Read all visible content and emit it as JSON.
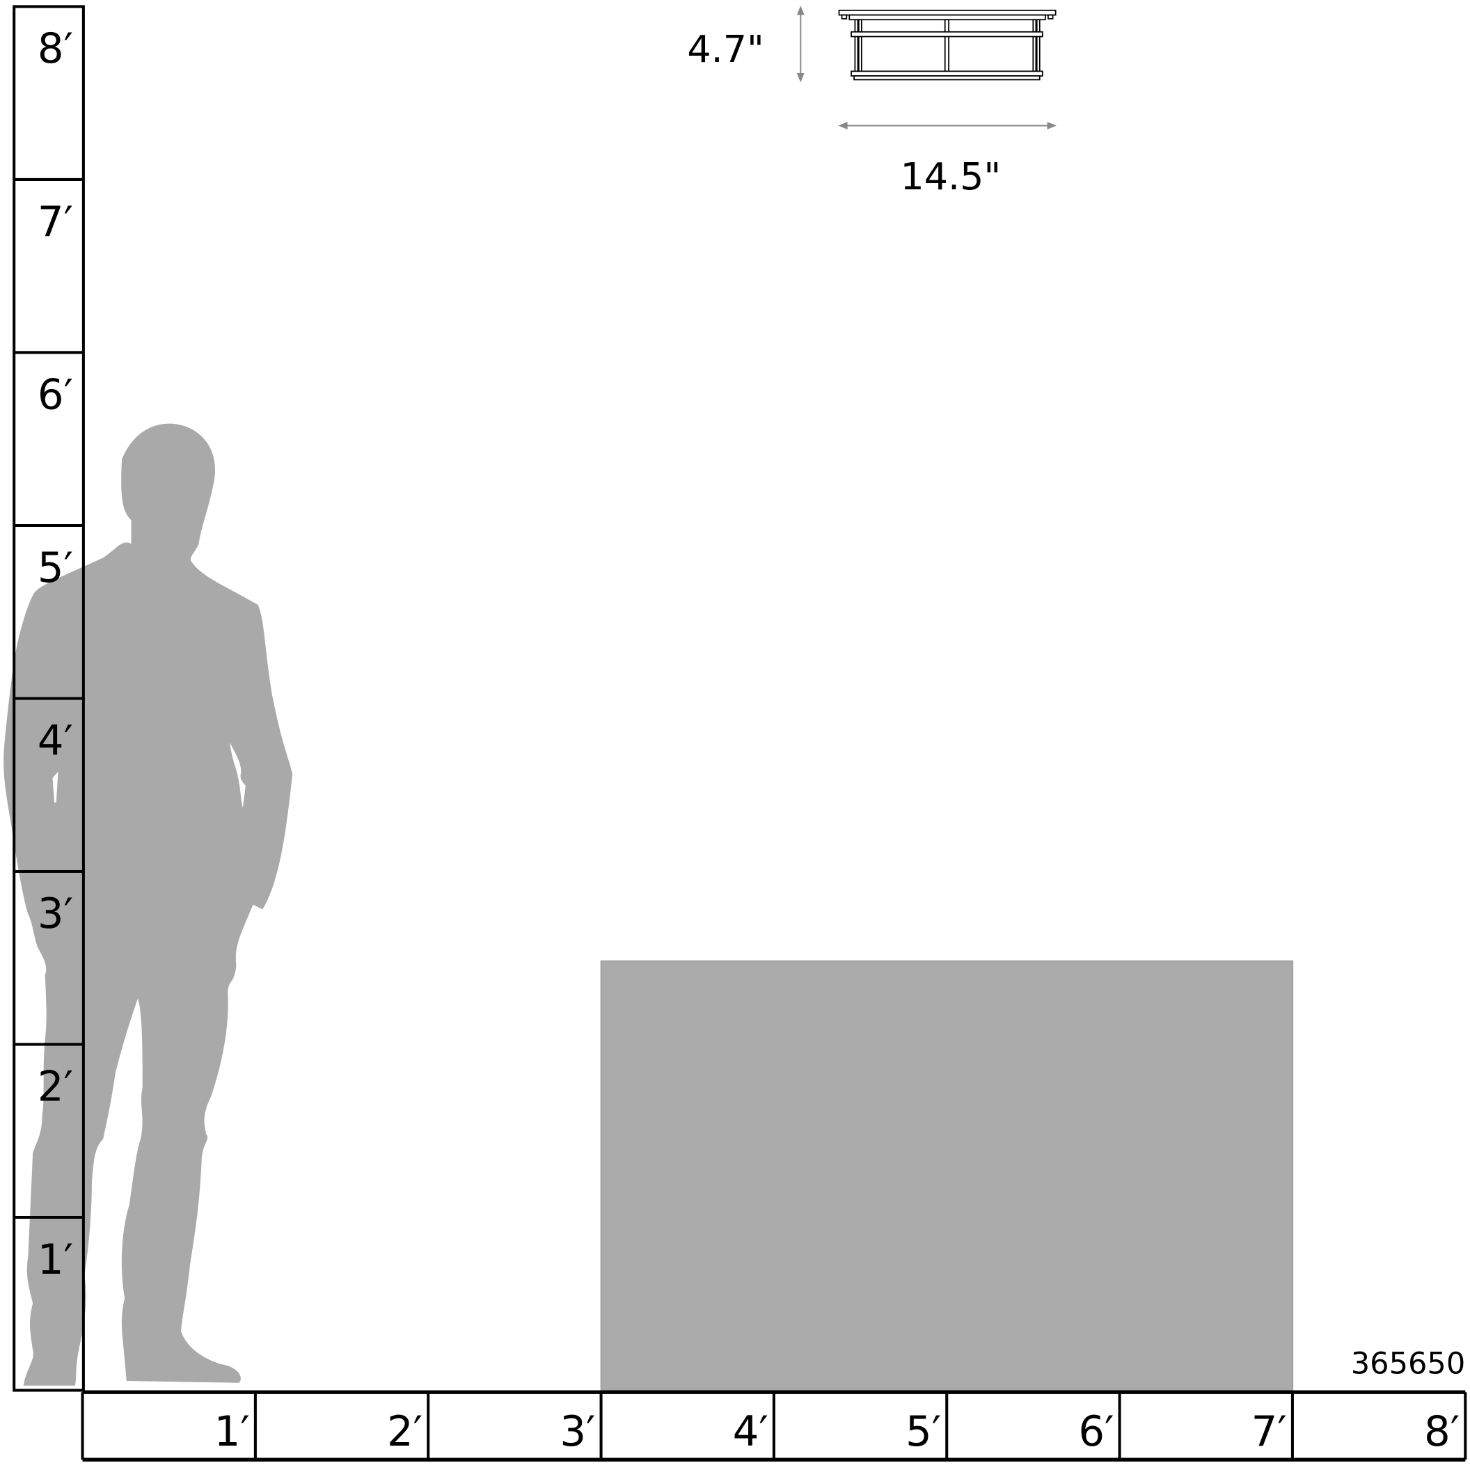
{
  "colors": {
    "silhouette": "#a9a9a9",
    "product_box": "#aaaaaa",
    "ruler_line": "#000000",
    "dimension_arrow": "#888888"
  },
  "vertical_ruler": {
    "labels": [
      "8′",
      "7′",
      "6′",
      "5′",
      "4′",
      "3′",
      "2′",
      "1′"
    ]
  },
  "horizontal_ruler": {
    "labels": [
      "1′",
      "2′",
      "3′",
      "4′",
      "5′",
      "6′",
      "7′",
      "8′"
    ]
  },
  "product": {
    "height_label": "4.7\"",
    "width_label": "14.5\"",
    "product_number": "365650"
  },
  "icons": {
    "person": "human-silhouette",
    "fixture": "flush-mount-fixture-drawing"
  }
}
